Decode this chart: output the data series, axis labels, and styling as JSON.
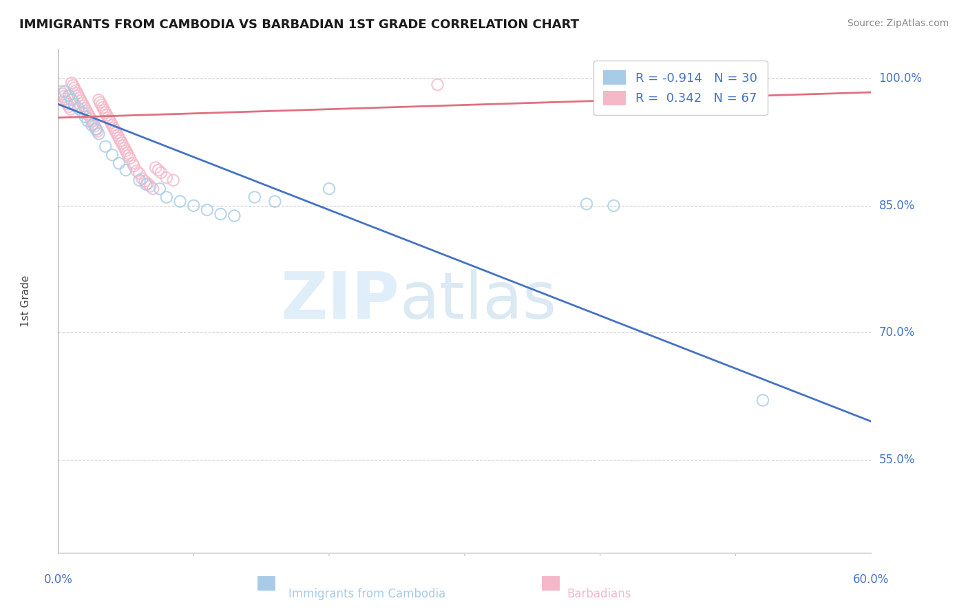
{
  "title": "IMMIGRANTS FROM CAMBODIA VS BARBADIAN 1ST GRADE CORRELATION CHART",
  "source": "Source: ZipAtlas.com",
  "ylabel": "1st Grade",
  "yticks": [
    1.0,
    0.85,
    0.7,
    0.55
  ],
  "ytick_labels": [
    "100.0%",
    "85.0%",
    "70.0%",
    "55.0%"
  ],
  "xlim": [
    0.0,
    0.6
  ],
  "ylim": [
    0.44,
    1.035
  ],
  "watermark_zip": "ZIP",
  "watermark_atlas": "atlas",
  "legend": {
    "blue_r": "-0.914",
    "blue_n": "30",
    "pink_r": "0.342",
    "pink_n": "67"
  },
  "blue_scatter": {
    "x": [
      0.005,
      0.008,
      0.01,
      0.012,
      0.015,
      0.018,
      0.02,
      0.022,
      0.025,
      0.028,
      0.03,
      0.035,
      0.04,
      0.045,
      0.05,
      0.06,
      0.065,
      0.075,
      0.08,
      0.09,
      0.1,
      0.11,
      0.12,
      0.13,
      0.145,
      0.16,
      0.2,
      0.39,
      0.41,
      0.52
    ],
    "y": [
      0.985,
      0.98,
      0.975,
      0.97,
      0.965,
      0.96,
      0.955,
      0.95,
      0.945,
      0.94,
      0.935,
      0.92,
      0.91,
      0.9,
      0.892,
      0.88,
      0.875,
      0.87,
      0.86,
      0.855,
      0.85,
      0.845,
      0.84,
      0.838,
      0.86,
      0.855,
      0.87,
      0.852,
      0.85,
      0.62
    ]
  },
  "pink_scatter": {
    "x": [
      0.002,
      0.003,
      0.004,
      0.005,
      0.006,
      0.007,
      0.008,
      0.009,
      0.01,
      0.011,
      0.012,
      0.013,
      0.014,
      0.015,
      0.016,
      0.017,
      0.018,
      0.019,
      0.02,
      0.021,
      0.022,
      0.023,
      0.024,
      0.025,
      0.026,
      0.027,
      0.028,
      0.029,
      0.03,
      0.031,
      0.032,
      0.033,
      0.034,
      0.035,
      0.036,
      0.037,
      0.038,
      0.039,
      0.04,
      0.041,
      0.042,
      0.043,
      0.044,
      0.045,
      0.046,
      0.047,
      0.048,
      0.049,
      0.05,
      0.051,
      0.052,
      0.053,
      0.055,
      0.056,
      0.058,
      0.06,
      0.062,
      0.064,
      0.066,
      0.068,
      0.07,
      0.072,
      0.074,
      0.076,
      0.08,
      0.085,
      0.28
    ],
    "y": [
      0.985,
      0.982,
      0.979,
      0.976,
      0.973,
      0.97,
      0.967,
      0.964,
      0.995,
      0.992,
      0.989,
      0.986,
      0.983,
      0.98,
      0.977,
      0.974,
      0.971,
      0.968,
      0.965,
      0.962,
      0.959,
      0.956,
      0.953,
      0.95,
      0.947,
      0.944,
      0.941,
      0.938,
      0.975,
      0.972,
      0.969,
      0.966,
      0.963,
      0.96,
      0.957,
      0.954,
      0.951,
      0.948,
      0.945,
      0.942,
      0.939,
      0.936,
      0.933,
      0.93,
      0.927,
      0.924,
      0.921,
      0.918,
      0.915,
      0.912,
      0.909,
      0.906,
      0.9,
      0.897,
      0.891,
      0.888,
      0.882,
      0.879,
      0.876,
      0.873,
      0.87,
      0.895,
      0.892,
      0.889,
      0.883,
      0.88,
      0.993
    ]
  },
  "blue_color": "#a8cce8",
  "pink_color": "#f5b8c8",
  "blue_line_color": "#4472c4",
  "pink_line_color": "#e07080",
  "background_color": "#ffffff",
  "grid_color": "#cccccc",
  "title_color": "#1a1a1a",
  "tick_color": "#4472c4"
}
